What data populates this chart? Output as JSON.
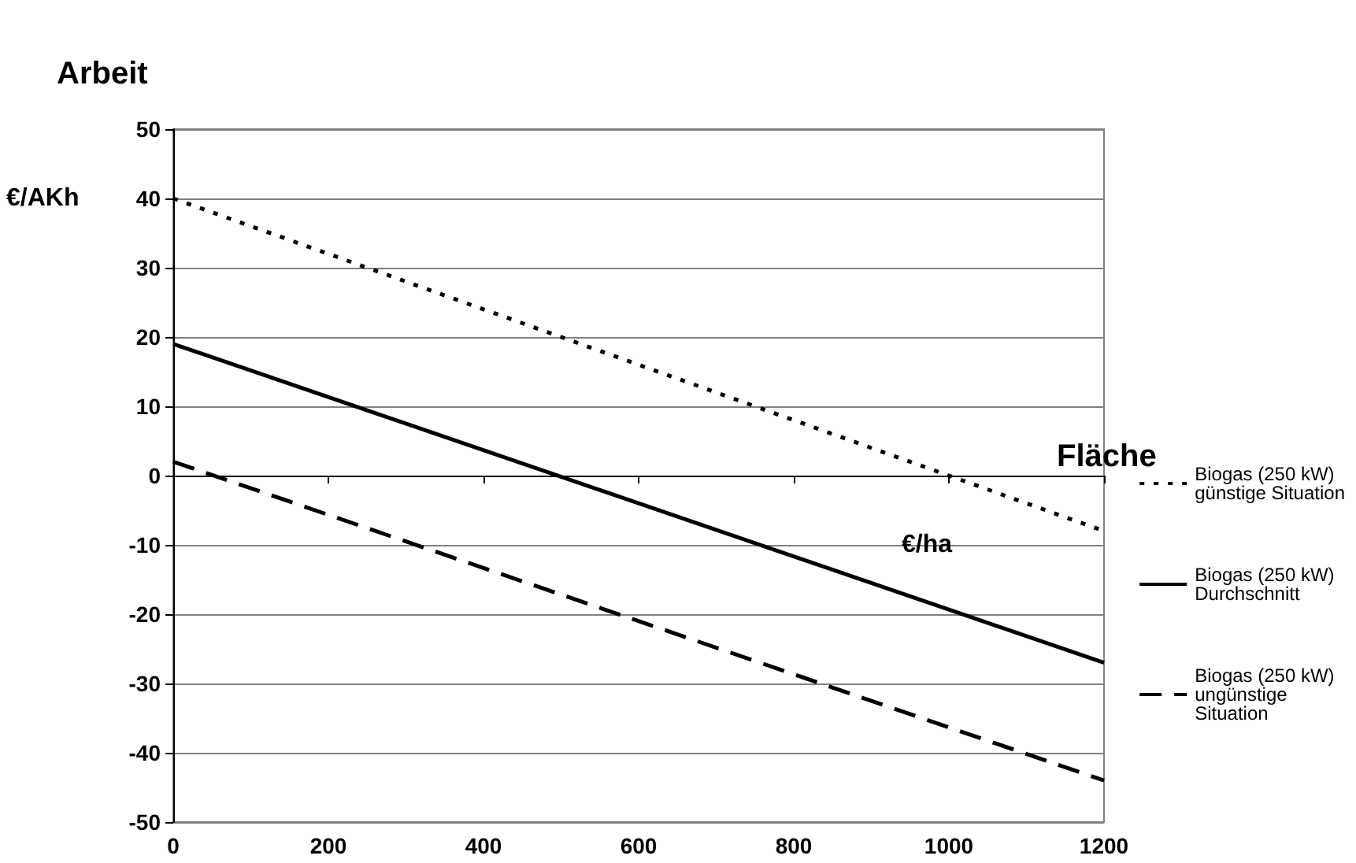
{
  "chart_data": {
    "type": "line",
    "xlabel": "Fläche",
    "ylabel": "Arbeit",
    "annotations": [
      "€/AKh",
      "€/ha"
    ],
    "xlim": [
      0,
      1200
    ],
    "xticks": [
      0,
      200,
      400,
      600,
      800,
      1000,
      1200
    ],
    "ylim": [
      -50,
      50
    ],
    "yticks": [
      -50,
      -40,
      -30,
      -20,
      -10,
      0,
      10,
      20,
      30,
      40,
      50
    ],
    "grid": "y",
    "legend": "right",
    "marker": "none",
    "x": [
      0,
      1200
    ],
    "series": [
      {
        "name": "Biogas (250 kW) günstige Situation",
        "color": "#000000",
        "line_style": "dotted",
        "values": [
          40,
          -8
        ]
      },
      {
        "name": "Biogas (250 kW) Durchschnitt",
        "color": "#000000",
        "line_style": "solid",
        "values": [
          19,
          -27
        ]
      },
      {
        "name": "Biogas (250 kW) ungünstige Situation",
        "color": "#000000",
        "line_style": "dashed",
        "values": [
          2,
          -44
        ]
      }
    ]
  }
}
